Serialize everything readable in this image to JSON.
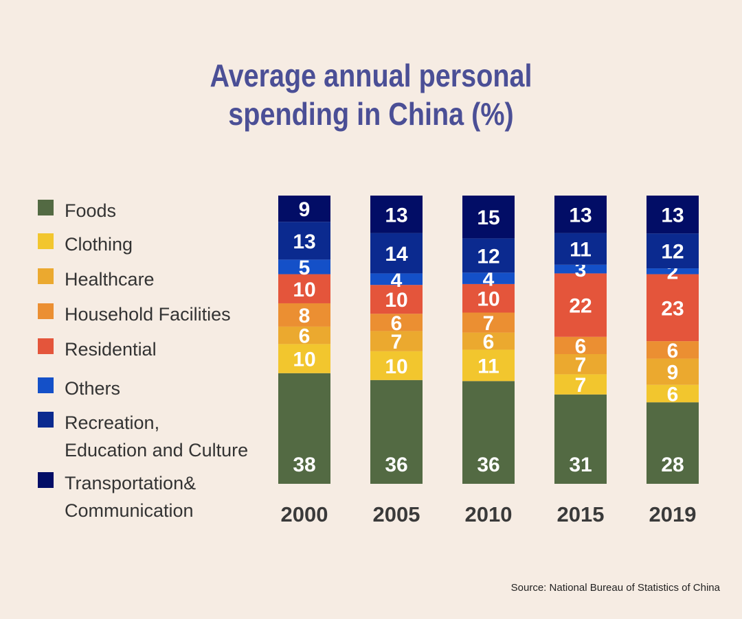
{
  "title": "Average annual personal\nspending in China  (%)",
  "source": "Source: National Bureau of Statistics of China",
  "chart_data": {
    "type": "bar",
    "stacked": true,
    "title": "Average annual personal spending in China (%)",
    "categories": [
      "2000",
      "2005",
      "2010",
      "2015",
      "2019"
    ],
    "series": [
      {
        "name": "Foods",
        "color": "#536a43",
        "values": [
          38,
          36,
          36,
          31,
          28
        ]
      },
      {
        "name": "Clothing",
        "color": "#f2c62e",
        "values": [
          10,
          10,
          11,
          7,
          6
        ]
      },
      {
        "name": "Healthcare",
        "color": "#eba92f",
        "values": [
          6,
          7,
          6,
          7,
          9
        ]
      },
      {
        "name": "Household  Facilities",
        "color": "#eb8f32",
        "values": [
          8,
          6,
          7,
          6,
          6
        ]
      },
      {
        "name": "Residential",
        "color": "#e4553b",
        "values": [
          10,
          10,
          10,
          22,
          23
        ]
      },
      {
        "name": "Others",
        "color": "#1450c8",
        "values": [
          5,
          4,
          4,
          3,
          2
        ]
      },
      {
        "name": "Recreation,\nEducation and Culture",
        "color": "#0b2a8f",
        "values": [
          13,
          14,
          12,
          11,
          12
        ]
      },
      {
        "name": "Transportation&\nCommunication",
        "color": "#020d66",
        "values": [
          9,
          13,
          15,
          13,
          13
        ]
      }
    ],
    "xlabel": "",
    "ylabel": "",
    "legend": "left"
  }
}
